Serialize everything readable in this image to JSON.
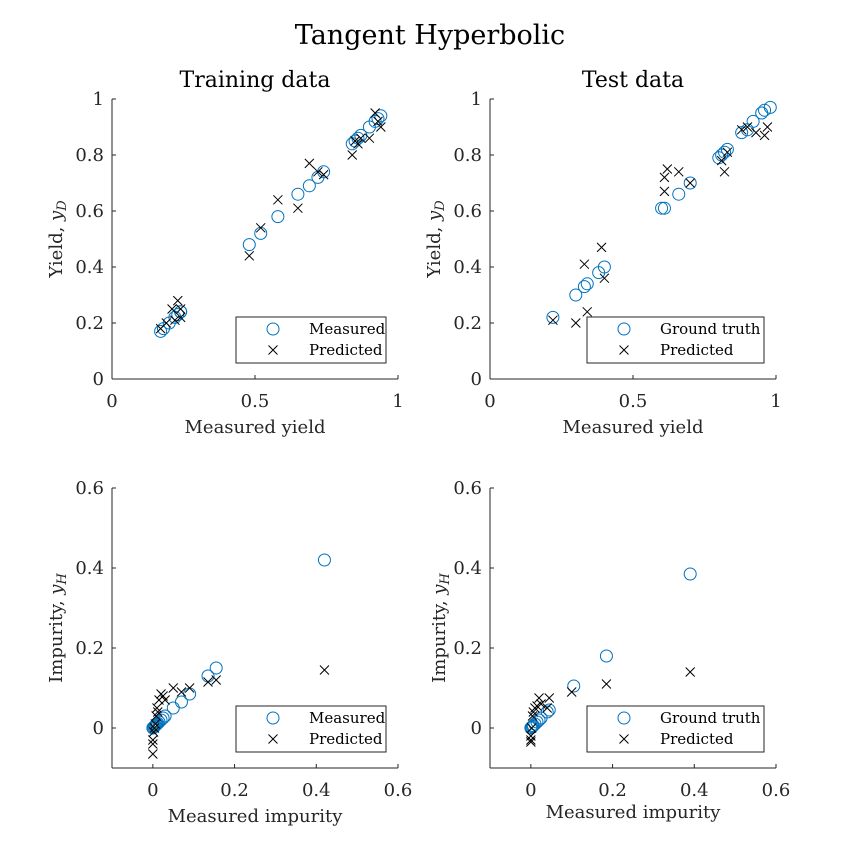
{
  "title": "Tangent Hyperbolic",
  "chart_data": [
    {
      "type": "scatter",
      "title": "Training data",
      "xlabel": "Measured yield",
      "ylabel": "Yield,",
      "ylabel_math": "yD",
      "xlim": [
        0,
        1
      ],
      "ylim": [
        0,
        1
      ],
      "xticks": [
        "0",
        "0.5",
        "1"
      ],
      "xtick_values": [
        0,
        0.5,
        1
      ],
      "yticks": [
        "0",
        "0.2",
        "0.4",
        "0.6",
        "0.8",
        "1"
      ],
      "ytick_values": [
        0,
        0.2,
        0.4,
        0.6,
        0.8,
        1
      ],
      "legend_position": "bottom-right",
      "series": [
        {
          "name": "Measured",
          "marker": "circle",
          "color": "#0072BD",
          "x": [
            0.17,
            0.18,
            0.2,
            0.22,
            0.23,
            0.24,
            0.24,
            0.48,
            0.52,
            0.58,
            0.65,
            0.69,
            0.72,
            0.74,
            0.84,
            0.85,
            0.86,
            0.87,
            0.9,
            0.92,
            0.93,
            0.94
          ],
          "y": [
            0.17,
            0.18,
            0.2,
            0.22,
            0.23,
            0.24,
            0.24,
            0.48,
            0.52,
            0.58,
            0.66,
            0.69,
            0.72,
            0.74,
            0.84,
            0.85,
            0.86,
            0.87,
            0.9,
            0.92,
            0.93,
            0.94
          ]
        },
        {
          "name": "Predicted",
          "marker": "x",
          "color": "#000000",
          "x": [
            0.17,
            0.19,
            0.21,
            0.22,
            0.23,
            0.24,
            0.24,
            0.48,
            0.52,
            0.58,
            0.65,
            0.69,
            0.72,
            0.74,
            0.84,
            0.85,
            0.86,
            0.87,
            0.9,
            0.92,
            0.93,
            0.94
          ],
          "y": [
            0.18,
            0.2,
            0.25,
            0.21,
            0.28,
            0.22,
            0.25,
            0.44,
            0.54,
            0.64,
            0.61,
            0.77,
            0.74,
            0.73,
            0.8,
            0.85,
            0.84,
            0.86,
            0.86,
            0.95,
            0.92,
            0.9
          ]
        }
      ]
    },
    {
      "type": "scatter",
      "title": "Test data",
      "xlabel": "Measured yield",
      "ylabel": "Yield,",
      "ylabel_math": "yD",
      "xlim": [
        0,
        1
      ],
      "ylim": [
        0,
        1
      ],
      "xticks": [
        "0",
        "0.5",
        "1"
      ],
      "xtick_values": [
        0,
        0.5,
        1
      ],
      "yticks": [
        "0",
        "0.2",
        "0.4",
        "0.6",
        "0.8",
        "1"
      ],
      "ytick_values": [
        0,
        0.2,
        0.4,
        0.6,
        0.8,
        1
      ],
      "legend_position": "bottom-right",
      "series": [
        {
          "name": "Ground truth",
          "marker": "circle",
          "color": "#0072BD",
          "x": [
            0.22,
            0.3,
            0.33,
            0.34,
            0.38,
            0.4,
            0.6,
            0.61,
            0.66,
            0.7,
            0.8,
            0.81,
            0.82,
            0.83,
            0.88,
            0.9,
            0.92,
            0.95,
            0.96,
            0.98
          ],
          "y": [
            0.22,
            0.3,
            0.33,
            0.34,
            0.38,
            0.4,
            0.61,
            0.61,
            0.66,
            0.7,
            0.79,
            0.8,
            0.81,
            0.82,
            0.88,
            0.89,
            0.92,
            0.95,
            0.96,
            0.97
          ],
          "_": ""
        },
        {
          "name": "Predicted",
          "marker": "x",
          "color": "#000000",
          "x": [
            0.22,
            0.3,
            0.33,
            0.34,
            0.39,
            0.4,
            0.61,
            0.61,
            0.62,
            0.66,
            0.7,
            0.81,
            0.82,
            0.83,
            0.88,
            0.9,
            0.93,
            0.96,
            0.97
          ],
          "y": [
            0.21,
            0.2,
            0.41,
            0.24,
            0.47,
            0.36,
            0.72,
            0.67,
            0.75,
            0.74,
            0.7,
            0.78,
            0.74,
            0.81,
            0.89,
            0.9,
            0.88,
            0.87,
            0.9
          ]
        }
      ]
    },
    {
      "type": "scatter",
      "title": "",
      "xlabel": "Measured impurity",
      "ylabel": "Impurity,",
      "ylabel_math": "yH",
      "xlim": [
        -0.1,
        0.6
      ],
      "ylim": [
        -0.1,
        0.6
      ],
      "xticks": [
        "0",
        "0.2",
        "0.4",
        "0.6"
      ],
      "xtick_values": [
        0,
        0.2,
        0.4,
        0.6
      ],
      "yticks": [
        "0",
        "0.2",
        "0.4",
        "0.6"
      ],
      "ytick_values": [
        0,
        0.2,
        0.4,
        0.6
      ],
      "legend_position": "bottom-right",
      "series": [
        {
          "name": "Measured",
          "marker": "circle",
          "color": "#0072BD",
          "x": [
            0,
            0.002,
            0.004,
            0.006,
            0.008,
            0.01,
            0.012,
            0.015,
            0.02,
            0.025,
            0.03,
            0.05,
            0.07,
            0.09,
            0.135,
            0.155,
            0.42
          ],
          "y": [
            0,
            0.002,
            0.004,
            0.006,
            0.008,
            0.01,
            0.012,
            0.015,
            0.02,
            0.025,
            0.03,
            0.05,
            0.065,
            0.085,
            0.13,
            0.15,
            0.42
          ]
        },
        {
          "name": "Predicted",
          "marker": "x",
          "color": "#000000",
          "x": [
            0,
            0,
            0,
            0.002,
            0.004,
            0.006,
            0.008,
            0.01,
            0.012,
            0.015,
            0.02,
            0.025,
            0.03,
            0.05,
            0.07,
            0.09,
            0.135,
            0.155,
            0.42
          ],
          "y": [
            -0.065,
            -0.04,
            -0.03,
            -0.01,
            0.0,
            0.01,
            0.03,
            0.05,
            0.04,
            0.07,
            0.085,
            0.08,
            0.07,
            0.1,
            0.09,
            0.1,
            0.115,
            0.12,
            0.145
          ]
        }
      ]
    },
    {
      "type": "scatter",
      "title": "",
      "xlabel": "Measured impurity",
      "ylabel": "Impurity,",
      "ylabel_math": "yH",
      "xlim": [
        -0.1,
        0.6
      ],
      "ylim": [
        -0.1,
        0.6
      ],
      "xticks": [
        "0",
        "0.2",
        "0.4",
        "0.6"
      ],
      "xtick_values": [
        0,
        0.2,
        0.4,
        0.6
      ],
      "yticks": [
        "0",
        "0.2",
        "0.4",
        "0.6"
      ],
      "ytick_values": [
        0,
        0.2,
        0.4,
        0.6
      ],
      "legend_position": "bottom-right",
      "series": [
        {
          "name": "Ground truth",
          "marker": "circle",
          "color": "#0072BD",
          "x": [
            0,
            0.002,
            0.004,
            0.006,
            0.01,
            0.015,
            0.02,
            0.025,
            0.04,
            0.045,
            0.105,
            0.185,
            0.39
          ],
          "y": [
            0,
            0.002,
            0.004,
            0.006,
            0.01,
            0.015,
            0.02,
            0.025,
            0.04,
            0.045,
            0.105,
            0.18,
            0.385
          ]
        },
        {
          "name": "Predicted",
          "marker": "x",
          "color": "#000000",
          "x": [
            0,
            0,
            0,
            0.002,
            0.004,
            0.006,
            0.01,
            0.015,
            0.02,
            0.025,
            0.04,
            0.045,
            0.1,
            0.185,
            0.39
          ],
          "y": [
            -0.035,
            -0.03,
            -0.02,
            0.0,
            0.03,
            0.04,
            0.05,
            0.055,
            0.075,
            0.06,
            0.05,
            0.075,
            0.09,
            0.11,
            0.14
          ]
        }
      ]
    }
  ]
}
